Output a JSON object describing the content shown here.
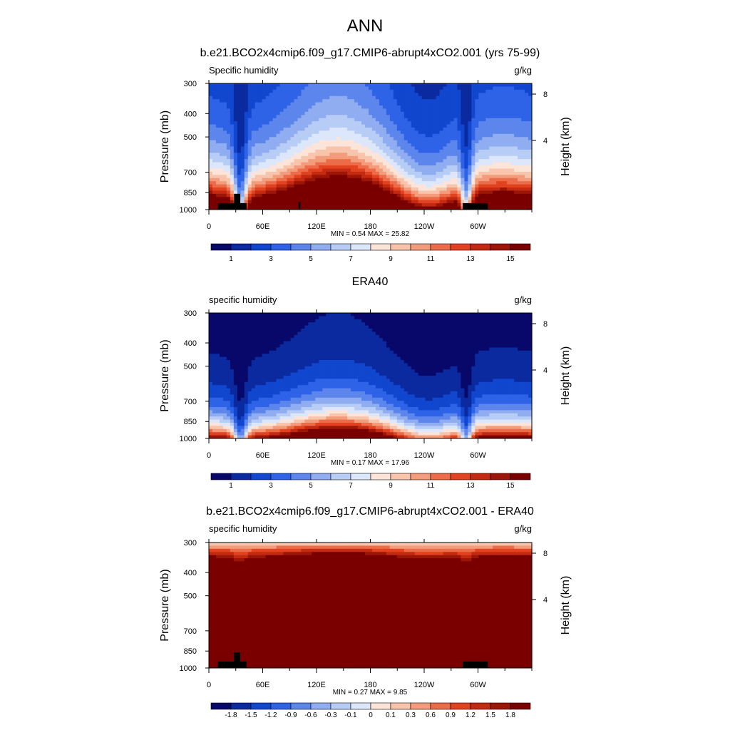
{
  "title": "ANN",
  "palettes": {
    "abs": [
      "#08086b",
      "#0b2aa0",
      "#1146cf",
      "#2e63e8",
      "#5d86ec",
      "#8fadf0",
      "#b8cdf5",
      "#dde7fb",
      "#fce5d8",
      "#f8c4ab",
      "#f39c7c",
      "#ec6c4a",
      "#e2421f",
      "#c32a12",
      "#9c1608",
      "#7a0000"
    ],
    "diff": [
      "#08086b",
      "#0b2aa0",
      "#1146cf",
      "#2e63e8",
      "#5d86ec",
      "#8fadf0",
      "#b8cdf5",
      "#dde7fb",
      "#fce5d8",
      "#f8c4ab",
      "#f39c7c",
      "#ec6c4a",
      "#e2421f",
      "#c32a12",
      "#9c1608",
      "#7a0000"
    ]
  },
  "chart_data": [
    {
      "type": "heatmap",
      "title": "b.e21.BCO2x4cmip6.f09_g17.CMIP6-abrupt4xCO2.001 (yrs 75-99)",
      "left_label": "Specific humidity",
      "units": "g/kg",
      "xlabel": "",
      "ylabel": "Pressure (mb)",
      "ylabel_right": "Height (km)",
      "x_ticks": [
        "0",
        "60E",
        "120E",
        "180",
        "120W",
        "60W"
      ],
      "y_ticks": [
        "300",
        "400",
        "500",
        "700",
        "850",
        "1000"
      ],
      "height_ticks": [
        "8",
        "4"
      ],
      "stats": "MIN =   0.54  MAX =  25.82",
      "colorbar_labels": [
        "1",
        "3",
        "5",
        "7",
        "9",
        "11",
        "13",
        "15"
      ],
      "palette": "abs",
      "xlim": [
        0,
        360
      ],
      "ylim": [
        1000,
        300
      ],
      "contour_levels": [
        0.5,
        1,
        2,
        3,
        4,
        5,
        6,
        7,
        8,
        9,
        10,
        11,
        12,
        13,
        14,
        15
      ],
      "shape": {
        "q_surface": 25,
        "scale_height_factor": 2.3,
        "base": 0.54
      },
      "masks": [
        {
          "lon": [
            10,
            42
          ],
          "p_top": 940
        },
        {
          "lon": [
            28,
            35
          ],
          "p_top": 860
        },
        {
          "lon": [
            100,
            102
          ],
          "p_top": 930
        },
        {
          "lon": [
            283,
            311
          ],
          "p_top": 940
        }
      ]
    },
    {
      "type": "heatmap",
      "title": "ERA40",
      "left_label": "specific humidity",
      "units": "g/kg",
      "xlabel": "",
      "ylabel": "Pressure (mb)",
      "ylabel_right": "Height (km)",
      "x_ticks": [
        "0",
        "60E",
        "120E",
        "180",
        "120W",
        "60W"
      ],
      "y_ticks": [
        "300",
        "400",
        "500",
        "700",
        "850",
        "1000"
      ],
      "height_ticks": [
        "8",
        "4"
      ],
      "stats": "MIN =   0.17  MAX =  17.96",
      "colorbar_labels": [
        "1",
        "3",
        "5",
        "7",
        "9",
        "11",
        "13",
        "15"
      ],
      "palette": "abs",
      "xlim": [
        0,
        360
      ],
      "ylim": [
        1000,
        300
      ],
      "contour_levels": [
        0.5,
        1,
        2,
        3,
        4,
        5,
        6,
        7,
        8,
        9,
        10,
        11,
        12,
        13,
        14,
        15
      ],
      "shape": {
        "q_surface": 17.5,
        "scale_height_factor": 3.6,
        "base": 0.17
      },
      "masks": []
    },
    {
      "type": "heatmap",
      "title": "b.e21.BCO2x4cmip6.f09_g17.CMIP6-abrupt4xCO2.001 - ERA40",
      "left_label": "specific humidity",
      "units": "g/kg",
      "xlabel": "",
      "ylabel": "Pressure (mb)",
      "ylabel_right": "Height (km)",
      "x_ticks": [
        "0",
        "60E",
        "120E",
        "180",
        "120W",
        "60W"
      ],
      "y_ticks": [
        "300",
        "400",
        "500",
        "700",
        "850",
        "1000"
      ],
      "height_ticks": [
        "8",
        "4"
      ],
      "stats": "MIN =   0.27  MAX =   9.85",
      "colorbar_labels": [
        "-1.8",
        "-1.5",
        "-1.2",
        "-0.9",
        "-0.6",
        "-0.3",
        "-0.1",
        "0",
        "0.1",
        "0.3",
        "0.6",
        "0.9",
        "1.2",
        "1.5",
        "1.8"
      ],
      "palette": "diff",
      "xlim": [
        0,
        360
      ],
      "ylim": [
        1000,
        300
      ],
      "contour_levels": [
        -2.1,
        -1.8,
        -1.5,
        -1.2,
        -0.9,
        -0.6,
        -0.3,
        -0.1,
        0,
        0.1,
        0.3,
        0.6,
        0.9,
        1.2,
        1.5,
        1.8
      ],
      "shape": {
        "diff": true
      },
      "masks": [
        {
          "lon": [
            10,
            42
          ],
          "p_top": 940
        },
        {
          "lon": [
            28,
            35
          ],
          "p_top": 860
        },
        {
          "lon": [
            283,
            311
          ],
          "p_top": 940
        }
      ]
    }
  ]
}
